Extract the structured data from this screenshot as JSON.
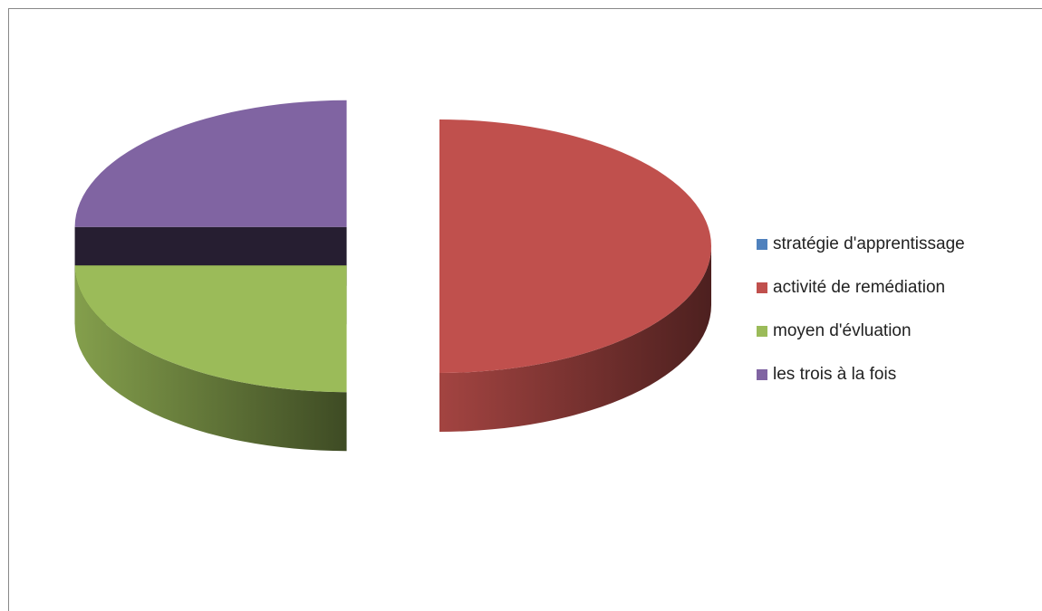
{
  "chart_data": {
    "type": "pie",
    "categories": [
      "stratégie d'apprentissage",
      "activité de remédiation",
      "moyen d'évluation",
      "les trois à la fois"
    ],
    "values": [
      0,
      50,
      25,
      25
    ],
    "colors": [
      "#4f81bd",
      "#c0504d",
      "#9bbb59",
      "#8064a2"
    ],
    "legend": "right"
  }
}
